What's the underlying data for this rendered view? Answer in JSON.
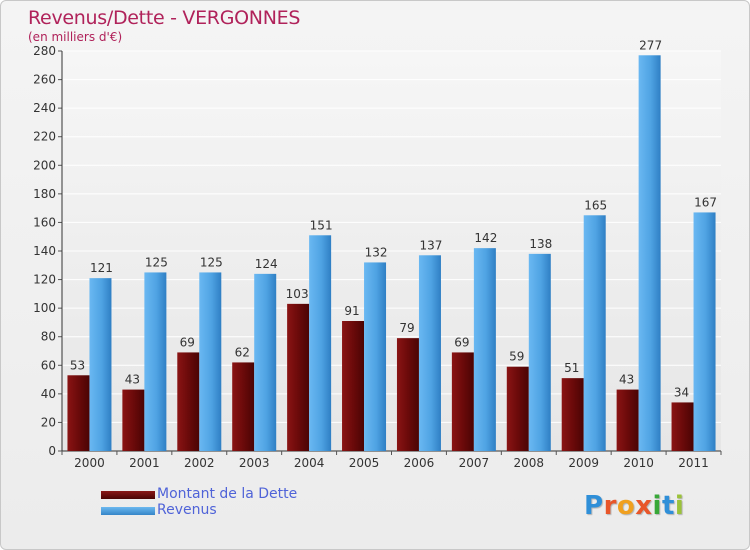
{
  "title": "Revenus/Dette - VERGONNES",
  "subtitle": "(en milliers d'€)",
  "legend": {
    "debt_label": "Montant de la Dette",
    "revenue_label": "Revenus"
  },
  "logo_text": "Proxiti",
  "colors": {
    "debt": "#6b0a0a",
    "revenue": "#4fa3e3",
    "title": "#b0225a",
    "legend_text": "#4f63d8"
  },
  "chart_data": {
    "type": "bar",
    "title": "Revenus/Dette - VERGONNES",
    "ylabel": "(en milliers d'€)",
    "xlabel": "",
    "categories": [
      "2000",
      "2001",
      "2002",
      "2003",
      "2004",
      "2005",
      "2006",
      "2007",
      "2008",
      "2009",
      "2010",
      "2011"
    ],
    "series": [
      {
        "name": "Montant de la Dette",
        "values": [
          53,
          43,
          69,
          62,
          103,
          91,
          79,
          69,
          59,
          51,
          43,
          34
        ]
      },
      {
        "name": "Revenus",
        "values": [
          121,
          125,
          125,
          124,
          151,
          132,
          137,
          142,
          138,
          165,
          277,
          167
        ]
      }
    ],
    "ylim": [
      0,
      280
    ],
    "yticks": [
      0,
      20,
      40,
      60,
      80,
      100,
      120,
      140,
      160,
      180,
      200,
      220,
      240,
      260,
      280
    ],
    "grid": true,
    "legend_position": "bottom-left"
  }
}
